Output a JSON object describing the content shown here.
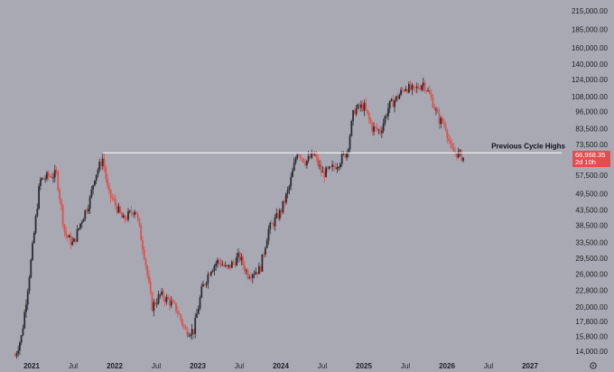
{
  "chart_data": {
    "type": "candlestick",
    "scale": "log",
    "grid": false,
    "colors": {
      "background": "#a9a9b4",
      "up": "#2b2b30",
      "down": "#d9534f",
      "level_line": "#ffffff",
      "price_label": "#e04f4f"
    },
    "y_ticks": [
      {
        "value": 14000,
        "label": "14,000.00"
      },
      {
        "value": 15800,
        "label": "15,800.00"
      },
      {
        "value": 17800,
        "label": "17,800.00"
      },
      {
        "value": 20000,
        "label": "20,000.00"
      },
      {
        "value": 22800,
        "label": "22,800.00"
      },
      {
        "value": 26000,
        "label": "26,000.00"
      },
      {
        "value": 29500,
        "label": "29,500.00"
      },
      {
        "value": 33500,
        "label": "33,500.00"
      },
      {
        "value": 38500,
        "label": "38,500.00"
      },
      {
        "value": 43500,
        "label": "43,500.00"
      },
      {
        "value": 49500,
        "label": "49,500.00"
      },
      {
        "value": 57500,
        "label": "57,500.00"
      },
      {
        "value": 73500,
        "label": "73,500.00"
      },
      {
        "value": 83500,
        "label": "83,500.00"
      },
      {
        "value": 96000,
        "label": "96,000.00"
      },
      {
        "value": 108000,
        "label": "108,000.00"
      },
      {
        "value": 124000,
        "label": "124,000.00"
      },
      {
        "value": 140000,
        "label": "140,000.00"
      },
      {
        "value": 160000,
        "label": "160,000.00"
      },
      {
        "value": 185000,
        "label": "185,000.00"
      },
      {
        "value": 215000,
        "label": "215,000.00"
      }
    ],
    "x_ticks": [
      {
        "t": 2021.0,
        "label": "2021"
      },
      {
        "t": 2021.5,
        "label": "Jul"
      },
      {
        "t": 2022.0,
        "label": "2022"
      },
      {
        "t": 2022.5,
        "label": "Jul"
      },
      {
        "t": 2023.0,
        "label": "2023"
      },
      {
        "t": 2023.5,
        "label": "Jul"
      },
      {
        "t": 2024.0,
        "label": "2024"
      },
      {
        "t": 2024.5,
        "label": "Jul"
      },
      {
        "t": 2025.0,
        "label": "2025"
      },
      {
        "t": 2025.5,
        "label": "Jul"
      },
      {
        "t": 2026.0,
        "label": "2026"
      },
      {
        "t": 2026.5,
        "label": "Jul"
      },
      {
        "t": 2027.0,
        "label": "2027"
      }
    ],
    "price_keypoints": [
      [
        2020.8,
        13500
      ],
      [
        2020.88,
        15800
      ],
      [
        2021.0,
        30000
      ],
      [
        2021.1,
        55000
      ],
      [
        2021.2,
        57000
      ],
      [
        2021.3,
        58000
      ],
      [
        2021.4,
        36000
      ],
      [
        2021.5,
        33000
      ],
      [
        2021.6,
        40000
      ],
      [
        2021.7,
        47000
      ],
      [
        2021.76,
        57000
      ],
      [
        2021.86,
        66000
      ],
      [
        2021.92,
        50000
      ],
      [
        2022.0,
        46000
      ],
      [
        2022.1,
        40000
      ],
      [
        2022.25,
        44000
      ],
      [
        2022.36,
        30000
      ],
      [
        2022.45,
        20000
      ],
      [
        2022.55,
        22000
      ],
      [
        2022.65,
        21000
      ],
      [
        2022.75,
        19500
      ],
      [
        2022.85,
        16500
      ],
      [
        2022.95,
        16500
      ],
      [
        2023.05,
        23000
      ],
      [
        2023.15,
        27000
      ],
      [
        2023.25,
        29000
      ],
      [
        2023.35,
        27000
      ],
      [
        2023.5,
        30000
      ],
      [
        2023.6,
        26000
      ],
      [
        2023.75,
        27000
      ],
      [
        2023.85,
        37000
      ],
      [
        2024.0,
        43000
      ],
      [
        2024.1,
        52000
      ],
      [
        2024.2,
        70000
      ],
      [
        2024.3,
        64000
      ],
      [
        2024.4,
        68000
      ],
      [
        2024.5,
        58000
      ],
      [
        2024.6,
        60000
      ],
      [
        2024.7,
        64000
      ],
      [
        2024.8,
        70000
      ],
      [
        2024.88,
        97000
      ],
      [
        2025.0,
        100000
      ],
      [
        2025.1,
        84000
      ],
      [
        2025.2,
        82000
      ],
      [
        2025.3,
        100000
      ],
      [
        2025.4,
        107000
      ],
      [
        2025.5,
        117000
      ],
      [
        2025.6,
        113000
      ],
      [
        2025.72,
        121000
      ],
      [
        2025.82,
        105000
      ],
      [
        2025.9,
        90000
      ],
      [
        2025.98,
        86000
      ],
      [
        2026.05,
        70000
      ],
      [
        2026.15,
        68000
      ],
      [
        2026.2,
        66000
      ]
    ],
    "candle_interval": 0.0192,
    "annotation": {
      "label": "Previous Cycle Highs",
      "level": 68800,
      "from": 2021.86
    },
    "current_price": {
      "value": 66968.35,
      "label": "66,968.35",
      "countdown": "2d 10h"
    }
  }
}
